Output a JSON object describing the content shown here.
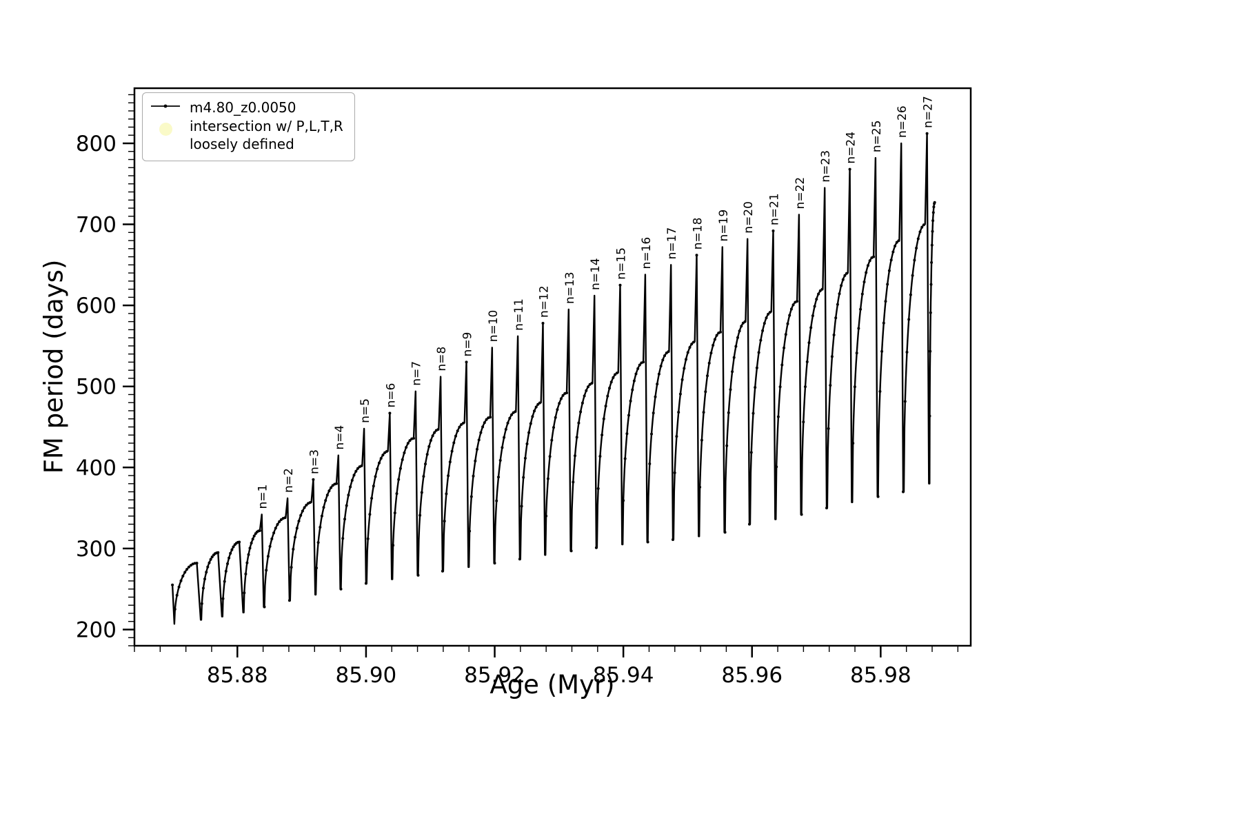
{
  "chart_data": {
    "type": "line",
    "title": "",
    "xlabel": "Age (Myr)",
    "ylabel": "FM period (days)",
    "xlim": [
      85.864,
      85.994
    ],
    "ylim": [
      180,
      868
    ],
    "xticks": [
      85.88,
      85.9,
      85.92,
      85.94,
      85.96,
      85.98
    ],
    "yticks": [
      200,
      300,
      400,
      500,
      600,
      700,
      800
    ],
    "x_minor_step": 0.004,
    "y_minor_step": 10,
    "grid": false,
    "legend_position": "upper left",
    "series_color": "#000000",
    "legend": [
      {
        "label": "m4.80_z0.0050",
        "marker": "line-dot",
        "color": "#000000"
      },
      {
        "label": "intersection w/ P,L,T,R\nloosely defined",
        "marker": "dot",
        "color": "#fafac8"
      }
    ],
    "data_start": {
      "x": 85.8699,
      "y": 255
    },
    "cycles_note": "each cycle: [n_label_or_null, x_end_of_cycle_Myr, min_period_at_cycle_start_days, arc_peak_days, spike_peak_days_or_null]",
    "cycles": [
      [
        null,
        85.8743,
        207,
        282,
        null
      ],
      [
        null,
        85.8776,
        212,
        295,
        null
      ],
      [
        null,
        85.8809,
        216,
        308,
        null
      ],
      [
        1,
        85.8841,
        221,
        322,
        342
      ],
      [
        2,
        85.8881,
        228,
        338,
        362
      ],
      [
        3,
        85.8921,
        236,
        357,
        385
      ],
      [
        4,
        85.896,
        243,
        380,
        415
      ],
      [
        5,
        85.9,
        250,
        402,
        448
      ],
      [
        6,
        85.904,
        257,
        420,
        467
      ],
      [
        7,
        85.908,
        262,
        436,
        494
      ],
      [
        8,
        85.9119,
        267,
        447,
        512
      ],
      [
        9,
        85.9159,
        272,
        455,
        530
      ],
      [
        10,
        85.9199,
        277,
        462,
        548
      ],
      [
        11,
        85.9239,
        282,
        469,
        562
      ],
      [
        12,
        85.9278,
        287,
        480,
        578
      ],
      [
        13,
        85.9318,
        292,
        492,
        595
      ],
      [
        14,
        85.9358,
        297,
        504,
        612
      ],
      [
        15,
        85.9398,
        301,
        517,
        625
      ],
      [
        16,
        85.9437,
        305,
        530,
        638
      ],
      [
        17,
        85.9477,
        308,
        543,
        650
      ],
      [
        18,
        85.9517,
        311,
        555,
        662
      ],
      [
        19,
        85.9557,
        315,
        567,
        672
      ],
      [
        20,
        85.9596,
        320,
        580,
        682
      ],
      [
        21,
        85.9636,
        330,
        592,
        692
      ],
      [
        22,
        85.9676,
        336,
        605,
        712
      ],
      [
        23,
        85.9716,
        342,
        620,
        745
      ],
      [
        24,
        85.9755,
        350,
        640,
        768
      ],
      [
        25,
        85.9795,
        357,
        660,
        782
      ],
      [
        26,
        85.9835,
        364,
        680,
        800
      ],
      [
        27,
        85.9875,
        370,
        700,
        812
      ],
      [
        null,
        85.989,
        380,
        727,
        null
      ]
    ]
  }
}
